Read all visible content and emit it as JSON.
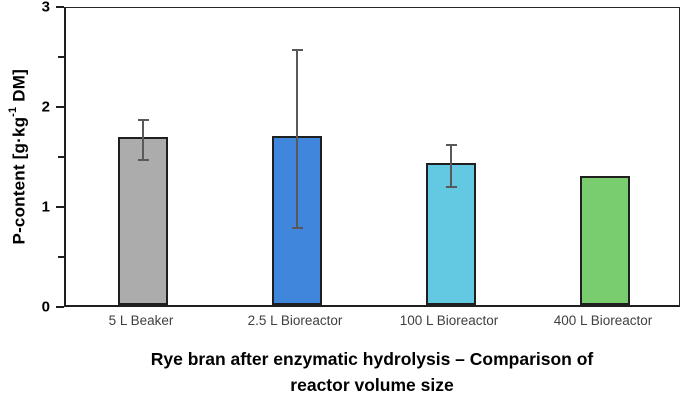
{
  "figure": {
    "title_line1": "Rye bran after enzymatic hydrolysis – Comparison of",
    "title_line2": "reactor volume size",
    "y_label_prefix": "P-content [g·kg",
    "y_label_sup": "-1",
    "y_label_suffix": " DM]"
  },
  "chart_data": {
    "type": "bar",
    "title": "Rye bran after enzymatic hydrolysis – Comparison of reactor volume size",
    "xlabel": "",
    "ylabel": "P-content [g·kg⁻¹ DM]",
    "categories": [
      "5 L Beaker",
      "2.5 L Bioreactor",
      "100 L Bioreactor",
      "400 L Bioreactor"
    ],
    "values": [
      1.68,
      1.69,
      1.42,
      1.29
    ],
    "errors": [
      0.2,
      0.89,
      0.21,
      null
    ],
    "bar_colors": [
      "#ACACAC",
      "#3F86DC",
      "#63C8E2",
      "#7ACD6E"
    ],
    "bar_border_color": "#1F1F1F",
    "error_bar_color": "#595959",
    "ylim": [
      0,
      3
    ],
    "ytick_labels": [
      0,
      1,
      2,
      3
    ],
    "ytick_minor_step": 0.5,
    "grid": false,
    "legend": null
  }
}
